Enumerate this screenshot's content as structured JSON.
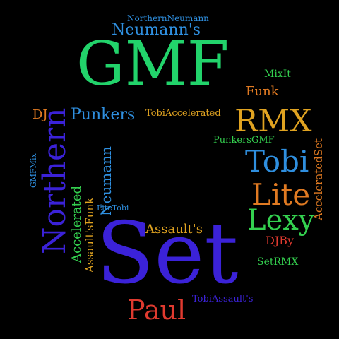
{
  "cloud": {
    "background": "#000000",
    "words": [
      {
        "id": "gmf",
        "text": "GMF",
        "color": "#22d36b"
      },
      {
        "id": "set",
        "text": "Set",
        "color": "#3b22d8"
      },
      {
        "id": "northern",
        "text": "Northern",
        "color": "#3b22d8"
      },
      {
        "id": "rmx",
        "text": "RMX",
        "color": "#e0a321"
      },
      {
        "id": "tobi",
        "text": "Tobi",
        "color": "#2f8fdf"
      },
      {
        "id": "lite",
        "text": "Lite",
        "color": "#e07a22"
      },
      {
        "id": "lexy",
        "text": "Lexy",
        "color": "#34d04f"
      },
      {
        "id": "paul",
        "text": "Paul",
        "color": "#e03a2f"
      },
      {
        "id": "neumanns-top",
        "text": "Neumann's",
        "color": "#2f8fdf"
      },
      {
        "id": "northernneumann",
        "text": "NorthernNeumann",
        "color": "#2f8fdf"
      },
      {
        "id": "punkers",
        "text": "Punkers",
        "color": "#2f8fdf"
      },
      {
        "id": "tobiaccelerated",
        "text": "TobiAccelerated",
        "color": "#e0a321"
      },
      {
        "id": "funk",
        "text": "Funk",
        "color": "#e07a22"
      },
      {
        "id": "mixit",
        "text": "MixIt",
        "color": "#34d04f"
      },
      {
        "id": "dj",
        "text": "DJ",
        "color": "#e07a22"
      },
      {
        "id": "punkersgmf",
        "text": "PunkersGMF",
        "color": "#34d04f"
      },
      {
        "id": "accelerated",
        "text": "Accelerated",
        "color": "#34d04f"
      },
      {
        "id": "assaultsfunk",
        "text": "Assault'sFunk",
        "color": "#e0a321"
      },
      {
        "id": "neumann",
        "text": "Neumann",
        "color": "#2f8fdf"
      },
      {
        "id": "litetobi",
        "text": "LiteTobi",
        "color": "#2f8fdf"
      },
      {
        "id": "gmfmix",
        "text": "GMFMix",
        "color": "#2f8fdf"
      },
      {
        "id": "assaults",
        "text": "Assault's",
        "color": "#e0a321"
      },
      {
        "id": "djby",
        "text": "DJBy",
        "color": "#e03a2f"
      },
      {
        "id": "setrmx",
        "text": "SetRMX",
        "color": "#34d04f"
      },
      {
        "id": "acceleratedset",
        "text": "AcceleratedSet",
        "color": "#e07a22"
      },
      {
        "id": "tobiassaults",
        "text": "TobiAssault's",
        "color": "#3b22d8"
      }
    ]
  }
}
